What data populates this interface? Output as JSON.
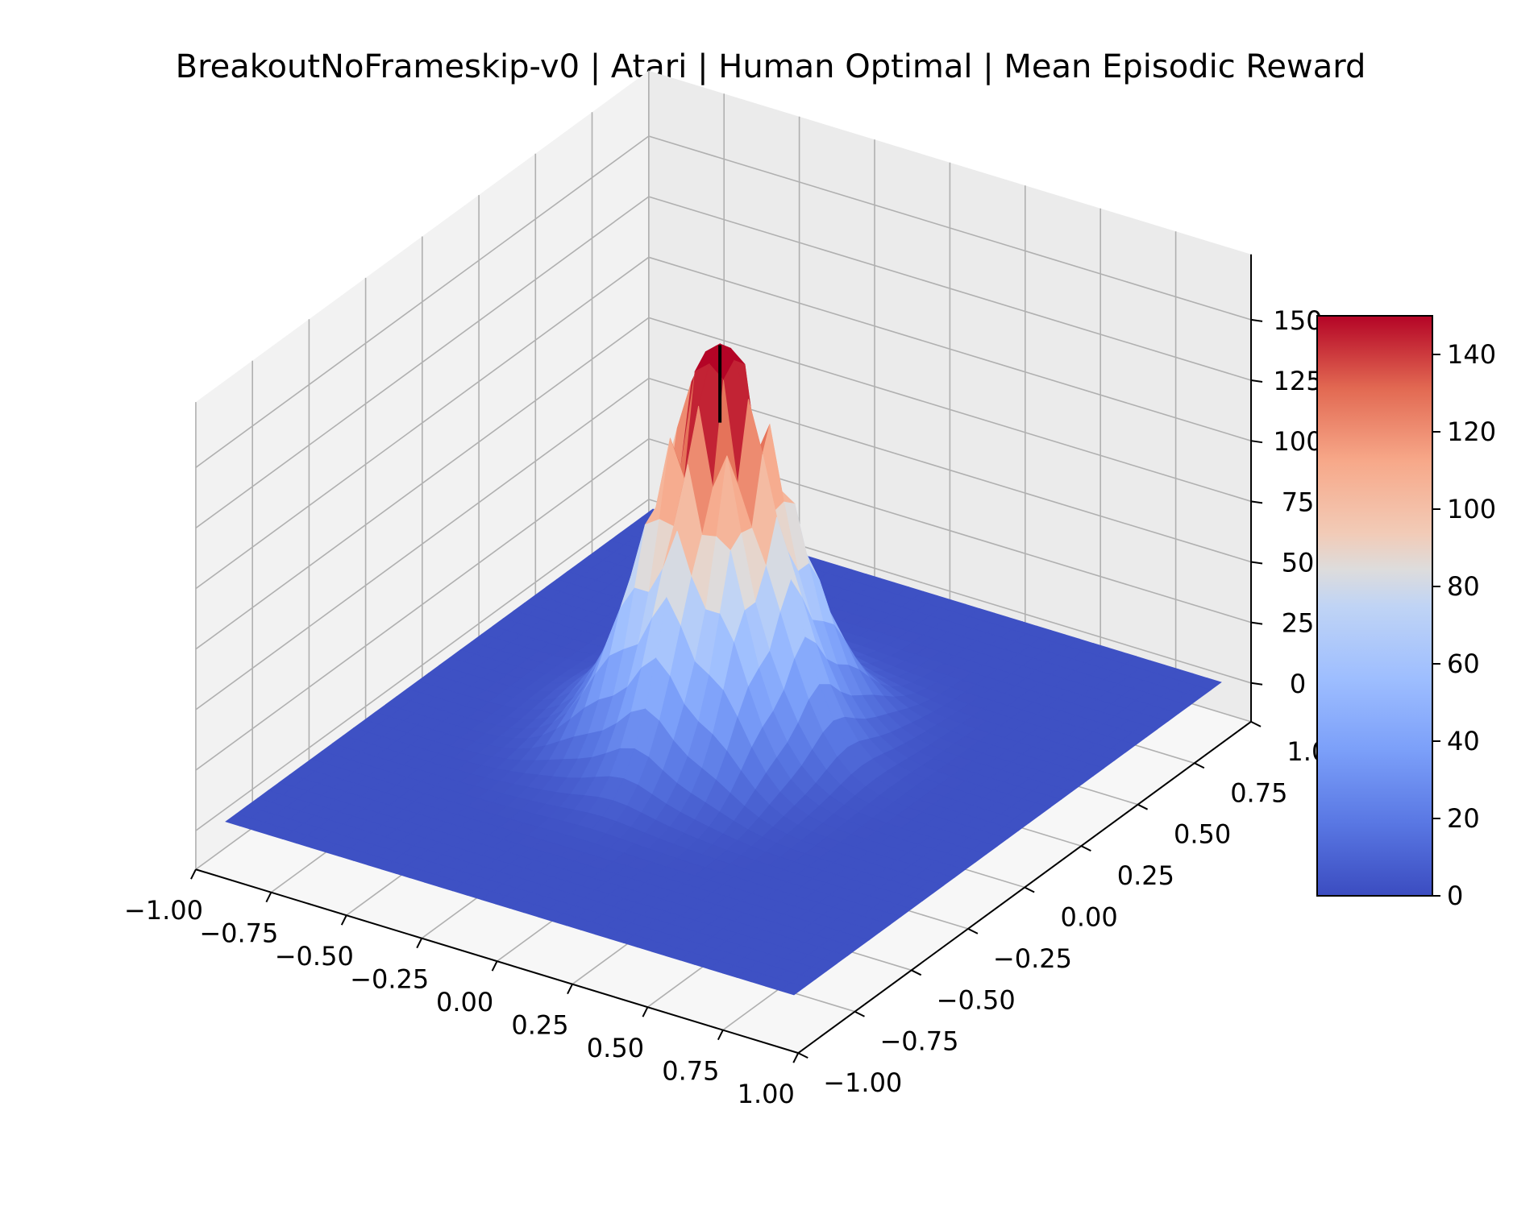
{
  "chart_data": {
    "type": "surface3d",
    "title": "BreakoutNoFrameskip-v0 | Atari | Human Optimal | Mean Episodic Reward",
    "xlabel": "",
    "ylabel": "",
    "zlabel": "",
    "xlim": [
      -1.0,
      1.0
    ],
    "ylim": [
      -1.0,
      1.0
    ],
    "zlim": [
      -8,
      165
    ],
    "x_ticks": [
      "−1.00",
      "−0.75",
      "−0.50",
      "−0.25",
      "0.00",
      "0.25",
      "0.50",
      "0.75",
      "1.00"
    ],
    "y_ticks": [
      "−1.00",
      "−0.75",
      "−0.50",
      "−0.25",
      "0.00",
      "0.25",
      "0.50",
      "0.75",
      "1.00"
    ],
    "z_ticks": [
      "0",
      "25",
      "50",
      "75",
      "100",
      "125",
      "150"
    ],
    "colormap": "coolwarm",
    "colorbar": {
      "range": [
        0,
        150
      ],
      "ticks": [
        "0",
        "20",
        "40",
        "60",
        "80",
        "100",
        "120",
        "140"
      ]
    },
    "surface": {
      "shape": "peak",
      "peak_x": -0.05,
      "peak_y": 0.05,
      "peak_value": 148,
      "floor_value": 2
    },
    "optimum_marker": {
      "x": -0.05,
      "y": 0.05,
      "z_from": 133,
      "z_to": 165,
      "color": "#000000"
    },
    "grid": true
  }
}
